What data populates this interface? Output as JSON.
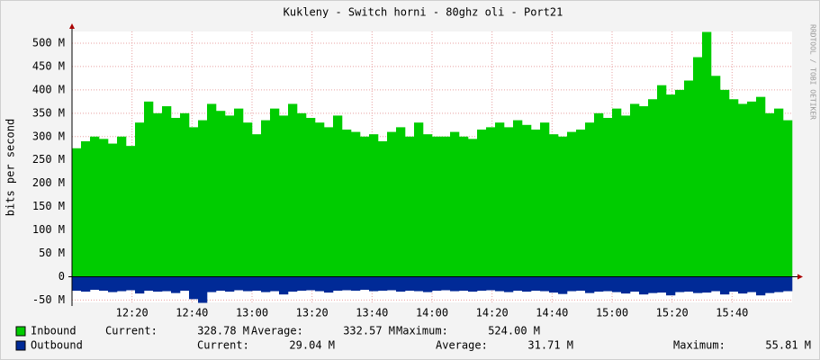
{
  "chart_data": {
    "type": "area",
    "title": "Kukleny - Switch horni - 80ghz oli - Port21",
    "y_label": "bits per second",
    "side_note": "RRDTOOL / TOBI OETIKER",
    "xlim": [
      "12:00",
      "16:00"
    ],
    "xticks": [
      "12:20",
      "12:40",
      "13:00",
      "13:20",
      "13:40",
      "14:00",
      "14:20",
      "14:40",
      "15:00",
      "15:20",
      "15:40"
    ],
    "ylim": [
      -55000000,
      525000000
    ],
    "yticks": [
      {
        "value": -50000000,
        "label": "-50 M"
      },
      {
        "value": 0,
        "label": "0"
      },
      {
        "value": 50000000,
        "label": "50 M"
      },
      {
        "value": 100000000,
        "label": "100 M"
      },
      {
        "value": 150000000,
        "label": "150 M"
      },
      {
        "value": 200000000,
        "label": "200 M"
      },
      {
        "value": 250000000,
        "label": "250 M"
      },
      {
        "value": 300000000,
        "label": "300 M"
      },
      {
        "value": 350000000,
        "label": "350 M"
      },
      {
        "value": 400000000,
        "label": "400 M"
      },
      {
        "value": 450000000,
        "label": "450 M"
      },
      {
        "value": 500000000,
        "label": "500 M"
      }
    ],
    "grid": true,
    "x": [
      "12:00",
      "12:03",
      "12:06",
      "12:09",
      "12:12",
      "12:15",
      "12:18",
      "12:21",
      "12:24",
      "12:27",
      "12:30",
      "12:33",
      "12:36",
      "12:39",
      "12:42",
      "12:45",
      "12:48",
      "12:51",
      "12:54",
      "12:57",
      "13:00",
      "13:03",
      "13:06",
      "13:09",
      "13:12",
      "13:15",
      "13:18",
      "13:21",
      "13:24",
      "13:27",
      "13:30",
      "13:33",
      "13:36",
      "13:39",
      "13:42",
      "13:45",
      "13:48",
      "13:51",
      "13:54",
      "13:57",
      "14:00",
      "14:03",
      "14:06",
      "14:09",
      "14:12",
      "14:15",
      "14:18",
      "14:21",
      "14:24",
      "14:27",
      "14:30",
      "14:33",
      "14:36",
      "14:39",
      "14:42",
      "14:45",
      "14:48",
      "14:51",
      "14:54",
      "14:57",
      "15:00",
      "15:03",
      "15:06",
      "15:09",
      "15:12",
      "15:15",
      "15:18",
      "15:21",
      "15:24",
      "15:27",
      "15:30",
      "15:33",
      "15:36",
      "15:39",
      "15:42",
      "15:45",
      "15:48",
      "15:51",
      "15:54",
      "15:57"
    ],
    "series": [
      {
        "name": "Inbound",
        "color": "#00cc00",
        "stats": [
          {
            "label": "Current:",
            "value": "328.78 M"
          },
          {
            "label": "Average:",
            "value": "332.57 M"
          },
          {
            "label": "Maximum:",
            "value": "524.00 M"
          }
        ],
        "values": [
          275000000,
          290000000,
          300000000,
          295000000,
          285000000,
          300000000,
          280000000,
          330000000,
          375000000,
          350000000,
          365000000,
          340000000,
          350000000,
          320000000,
          335000000,
          370000000,
          355000000,
          345000000,
          360000000,
          330000000,
          305000000,
          335000000,
          360000000,
          345000000,
          370000000,
          350000000,
          340000000,
          330000000,
          320000000,
          345000000,
          315000000,
          310000000,
          300000000,
          305000000,
          290000000,
          310000000,
          320000000,
          300000000,
          330000000,
          305000000,
          300000000,
          300000000,
          310000000,
          300000000,
          295000000,
          315000000,
          320000000,
          330000000,
          320000000,
          335000000,
          325000000,
          315000000,
          330000000,
          305000000,
          300000000,
          310000000,
          315000000,
          330000000,
          350000000,
          340000000,
          360000000,
          345000000,
          370000000,
          365000000,
          380000000,
          410000000,
          390000000,
          400000000,
          420000000,
          470000000,
          524000000,
          430000000,
          400000000,
          380000000,
          370000000,
          375000000,
          385000000,
          350000000,
          360000000,
          335000000
        ]
      },
      {
        "name": "Outbound",
        "color": "#002a97",
        "stats": [
          {
            "label": "Current:",
            "value": "29.04 M"
          },
          {
            "label": "Average:",
            "value": "31.71 M"
          },
          {
            "label": "Maximum:",
            "value": "55.81 M"
          }
        ],
        "values": [
          -30000000,
          -32000000,
          -28000000,
          -30000000,
          -33000000,
          -31000000,
          -29000000,
          -36000000,
          -30000000,
          -32000000,
          -31000000,
          -35000000,
          -30000000,
          -48000000,
          -56000000,
          -33000000,
          -30000000,
          -32000000,
          -29000000,
          -31000000,
          -30000000,
          -33000000,
          -31000000,
          -38000000,
          -32000000,
          -30000000,
          -29000000,
          -31000000,
          -34000000,
          -30000000,
          -29000000,
          -30000000,
          -28000000,
          -31000000,
          -30000000,
          -29000000,
          -32000000,
          -30000000,
          -31000000,
          -33000000,
          -30000000,
          -29000000,
          -31000000,
          -30000000,
          -32000000,
          -30000000,
          -29000000,
          -31000000,
          -33000000,
          -30000000,
          -32000000,
          -30000000,
          -31000000,
          -34000000,
          -37000000,
          -31000000,
          -30000000,
          -35000000,
          -32000000,
          -31000000,
          -33000000,
          -36000000,
          -32000000,
          -38000000,
          -35000000,
          -34000000,
          -40000000,
          -33000000,
          -32000000,
          -35000000,
          -34000000,
          -31000000,
          -38000000,
          -32000000,
          -36000000,
          -33000000,
          -40000000,
          -35000000,
          -33000000,
          -31000000
        ]
      }
    ]
  }
}
